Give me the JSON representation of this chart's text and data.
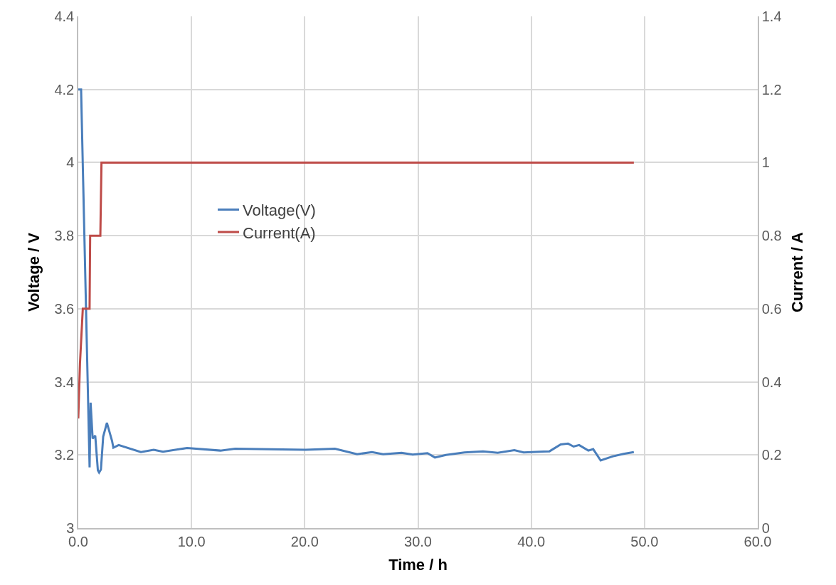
{
  "chart_data": {
    "type": "line",
    "xlabel": "Time / h",
    "ylabel": "Voltage / V",
    "y2label": "Current / A",
    "xlim": [
      0,
      60
    ],
    "xticks": [
      {
        "value": 0,
        "label": "0.0"
      },
      {
        "value": 10,
        "label": "10.0"
      },
      {
        "value": 20,
        "label": "20.0"
      },
      {
        "value": 30,
        "label": "30.0"
      },
      {
        "value": 40,
        "label": "40.0"
      },
      {
        "value": 50,
        "label": "50.0"
      },
      {
        "value": 60,
        "label": "60.0"
      }
    ],
    "ylim": [
      3,
      4.4
    ],
    "yticks": [
      3,
      3.2,
      3.4,
      3.6,
      3.8,
      4,
      4.2,
      4.4
    ],
    "y2lim": [
      0,
      1.4
    ],
    "y2ticks": [
      0,
      0.2,
      0.4,
      0.6,
      0.8,
      1,
      1.2,
      1.4
    ],
    "grid": true,
    "legend": "left",
    "marker": "none",
    "line_style": "solid",
    "series": [
      {
        "name": "Voltage(V)",
        "color": "#4a7ebb",
        "x": [
          0,
          0.25,
          1.0,
          1.09,
          1.27,
          1.5,
          1.73,
          1.84,
          2.0,
          2.2,
          2.53,
          2.98,
          3.1,
          3.57,
          5.53,
          6.66,
          7.48,
          9.61,
          12.55,
          13.85,
          20.06,
          22.67,
          24.63,
          25.94,
          26.92,
          28.55,
          29.53,
          30.84,
          31.49,
          32.47,
          34.1,
          35.74,
          37.04,
          38.51,
          39.33,
          41.61,
          42.6,
          43.25,
          43.74,
          44.23,
          45.04,
          45.47,
          46.13,
          47.17,
          48.15,
          49.06
        ],
        "values": [
          4.2,
          4.2,
          3.166,
          3.343,
          3.245,
          3.253,
          3.158,
          3.152,
          3.16,
          3.25,
          3.288,
          3.239,
          3.22,
          3.227,
          3.208,
          3.214,
          3.209,
          3.219,
          3.212,
          3.217,
          3.214,
          3.217,
          3.202,
          3.208,
          3.202,
          3.206,
          3.201,
          3.205,
          3.193,
          3.2,
          3.207,
          3.21,
          3.206,
          3.213,
          3.207,
          3.21,
          3.229,
          3.231,
          3.223,
          3.227,
          3.212,
          3.216,
          3.185,
          3.196,
          3.203,
          3.208
        ]
      },
      {
        "name": "Current(A)",
        "color": "#be4b48",
        "axis": "y2",
        "x": [
          0,
          0.15,
          0.4,
          1.0,
          1.05,
          1.95,
          2.05,
          49.06
        ],
        "values": [
          0.3,
          0.45,
          0.6,
          0.6,
          0.8,
          0.8,
          1.0,
          1.0
        ]
      }
    ]
  }
}
